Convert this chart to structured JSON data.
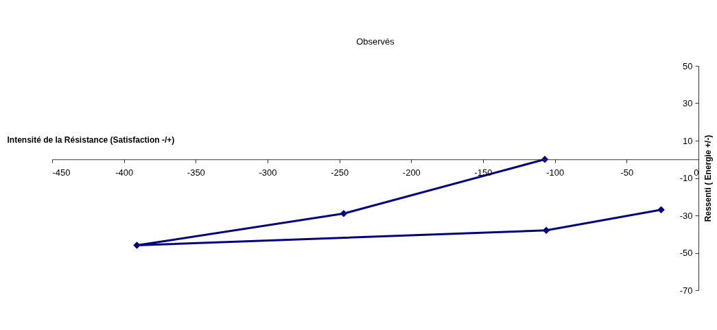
{
  "chart_data": {
    "type": "line",
    "title": "Observés",
    "xlabel": "Intensité de la Résistance (Satisfaction -/+)",
    "ylabel": "Ressenti ( Energie +/-)",
    "series": [
      {
        "color": "#000080",
        "x": [
          -26,
          -106,
          -391,
          -247,
          -107
        ],
        "values": [
          -27,
          -38,
          -46,
          -29,
          0
        ]
      }
    ],
    "xlim": [
      -450,
      0
    ],
    "xticks": [
      -450,
      -400,
      -350,
      -300,
      -250,
      -200,
      -150,
      -100,
      -50,
      0
    ],
    "ylim": [
      -70,
      50
    ],
    "yticks": [
      -70,
      -50,
      -30,
      -10,
      10,
      30,
      50
    ],
    "marker": "diamond",
    "line_style": "solid"
  }
}
